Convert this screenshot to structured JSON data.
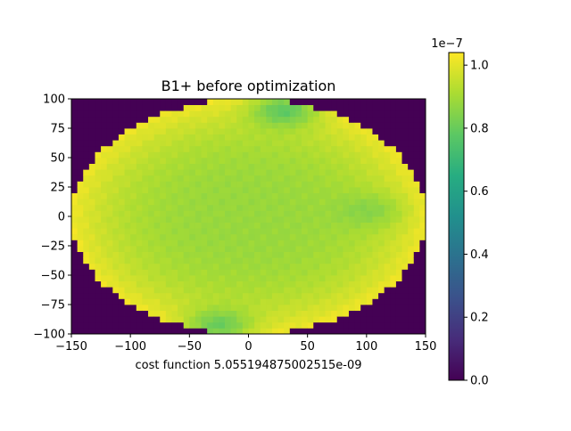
{
  "chart_data": {
    "type": "heatmap",
    "title": "B1+ before optimization",
    "xlabel": "cost function 5.055194875002515e-09",
    "ylabel": "",
    "xlim": [
      -150,
      150
    ],
    "ylim": [
      -100,
      100
    ],
    "x_ticks": [
      "−150",
      "−100",
      "−50",
      "0",
      "50",
      "100",
      "150"
    ],
    "x_tick_values": [
      -150,
      -100,
      -50,
      0,
      50,
      100,
      150
    ],
    "y_ticks": [
      "100",
      "75",
      "50",
      "25",
      "0",
      "−25",
      "−50",
      "−75",
      "−100"
    ],
    "y_tick_values": [
      100,
      75,
      50,
      25,
      0,
      -25,
      -50,
      -75,
      -100
    ],
    "colormap": "viridis",
    "colorbar": {
      "range": [
        0.0,
        1.04e-07
      ],
      "offset_text": "1e−7",
      "tick_labels": [
        "0.0",
        "0.2",
        "0.4",
        "0.6",
        "0.8",
        "1.0"
      ],
      "tick_values": [
        0.0,
        2e-08,
        4e-08,
        6e-08,
        8e-08,
        1e-07
      ]
    },
    "field": {
      "background_value": 0.0,
      "region": "ellipse, semi-axes 150 (x) by 100 (y), centered at 0,0",
      "center_value": 8.8e-08,
      "edge_value": 1.02e-07,
      "low_spots": [
        {
          "x": 30,
          "y": 90,
          "value": 7.8e-08
        },
        {
          "x": -25,
          "y": -92,
          "value": 8e-08
        },
        {
          "x": 100,
          "y": 5,
          "value": 8.5e-08
        }
      ]
    }
  }
}
